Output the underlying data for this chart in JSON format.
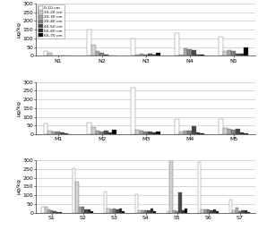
{
  "panel1": {
    "stations": [
      "N1",
      "N2",
      "N3",
      "N4",
      "N5"
    ],
    "data": [
      [
        25,
        150,
        100,
        130,
        108
      ],
      [
        18,
        65,
        5,
        5,
        28
      ],
      [
        4,
        25,
        12,
        45,
        32
      ],
      [
        3,
        15,
        8,
        40,
        28
      ],
      [
        2,
        5,
        10,
        30,
        12
      ],
      [
        1,
        2,
        5,
        5,
        10
      ],
      [
        1,
        2,
        15,
        5,
        50
      ]
    ],
    "ylabel": "μg/kg"
  },
  "panel2": {
    "stations": [
      "M1",
      "M2",
      "M3",
      "M4",
      "M5"
    ],
    "data": [
      [
        62,
        65,
        265,
        88,
        88
      ],
      [
        22,
        42,
        28,
        18,
        35
      ],
      [
        18,
        22,
        22,
        20,
        30
      ],
      [
        15,
        18,
        18,
        22,
        28
      ],
      [
        12,
        20,
        15,
        45,
        32
      ],
      [
        5,
        8,
        8,
        8,
        8
      ],
      [
        2,
        25,
        18,
        5,
        5
      ]
    ],
    "ylabel": "μg/kg"
  },
  "panel3": {
    "stations": [
      "S1",
      "S2",
      "S3",
      "S4",
      "S5",
      "S6",
      "S7"
    ],
    "data": [
      [
        32,
        255,
        122,
        108,
        8,
        290,
        78
      ],
      [
        35,
        178,
        22,
        15,
        305,
        18,
        15
      ],
      [
        18,
        32,
        18,
        15,
        12,
        18,
        28
      ],
      [
        15,
        32,
        22,
        12,
        10,
        18,
        8
      ],
      [
        10,
        18,
        18,
        15,
        118,
        15,
        12
      ],
      [
        5,
        18,
        22,
        22,
        12,
        18,
        15
      ],
      [
        2,
        10,
        8,
        8,
        22,
        8,
        5
      ]
    ],
    "ylabel": "μg/kg"
  },
  "legend_labels": [
    "0-10 cm",
    "10-20 cm",
    "20-30 cm",
    "30-40 cm",
    "40-50 cm",
    "50-60 cm",
    "60-70 cm"
  ],
  "bar_colors": [
    "#ffffff",
    "#d0d0d0",
    "#a8a8a8",
    "#808080",
    "#484848",
    "#282828",
    "#000000"
  ],
  "bar_edge": "#555555",
  "ylim": [
    0,
    300
  ],
  "yticks": [
    0,
    50,
    100,
    150,
    200,
    250,
    300
  ]
}
